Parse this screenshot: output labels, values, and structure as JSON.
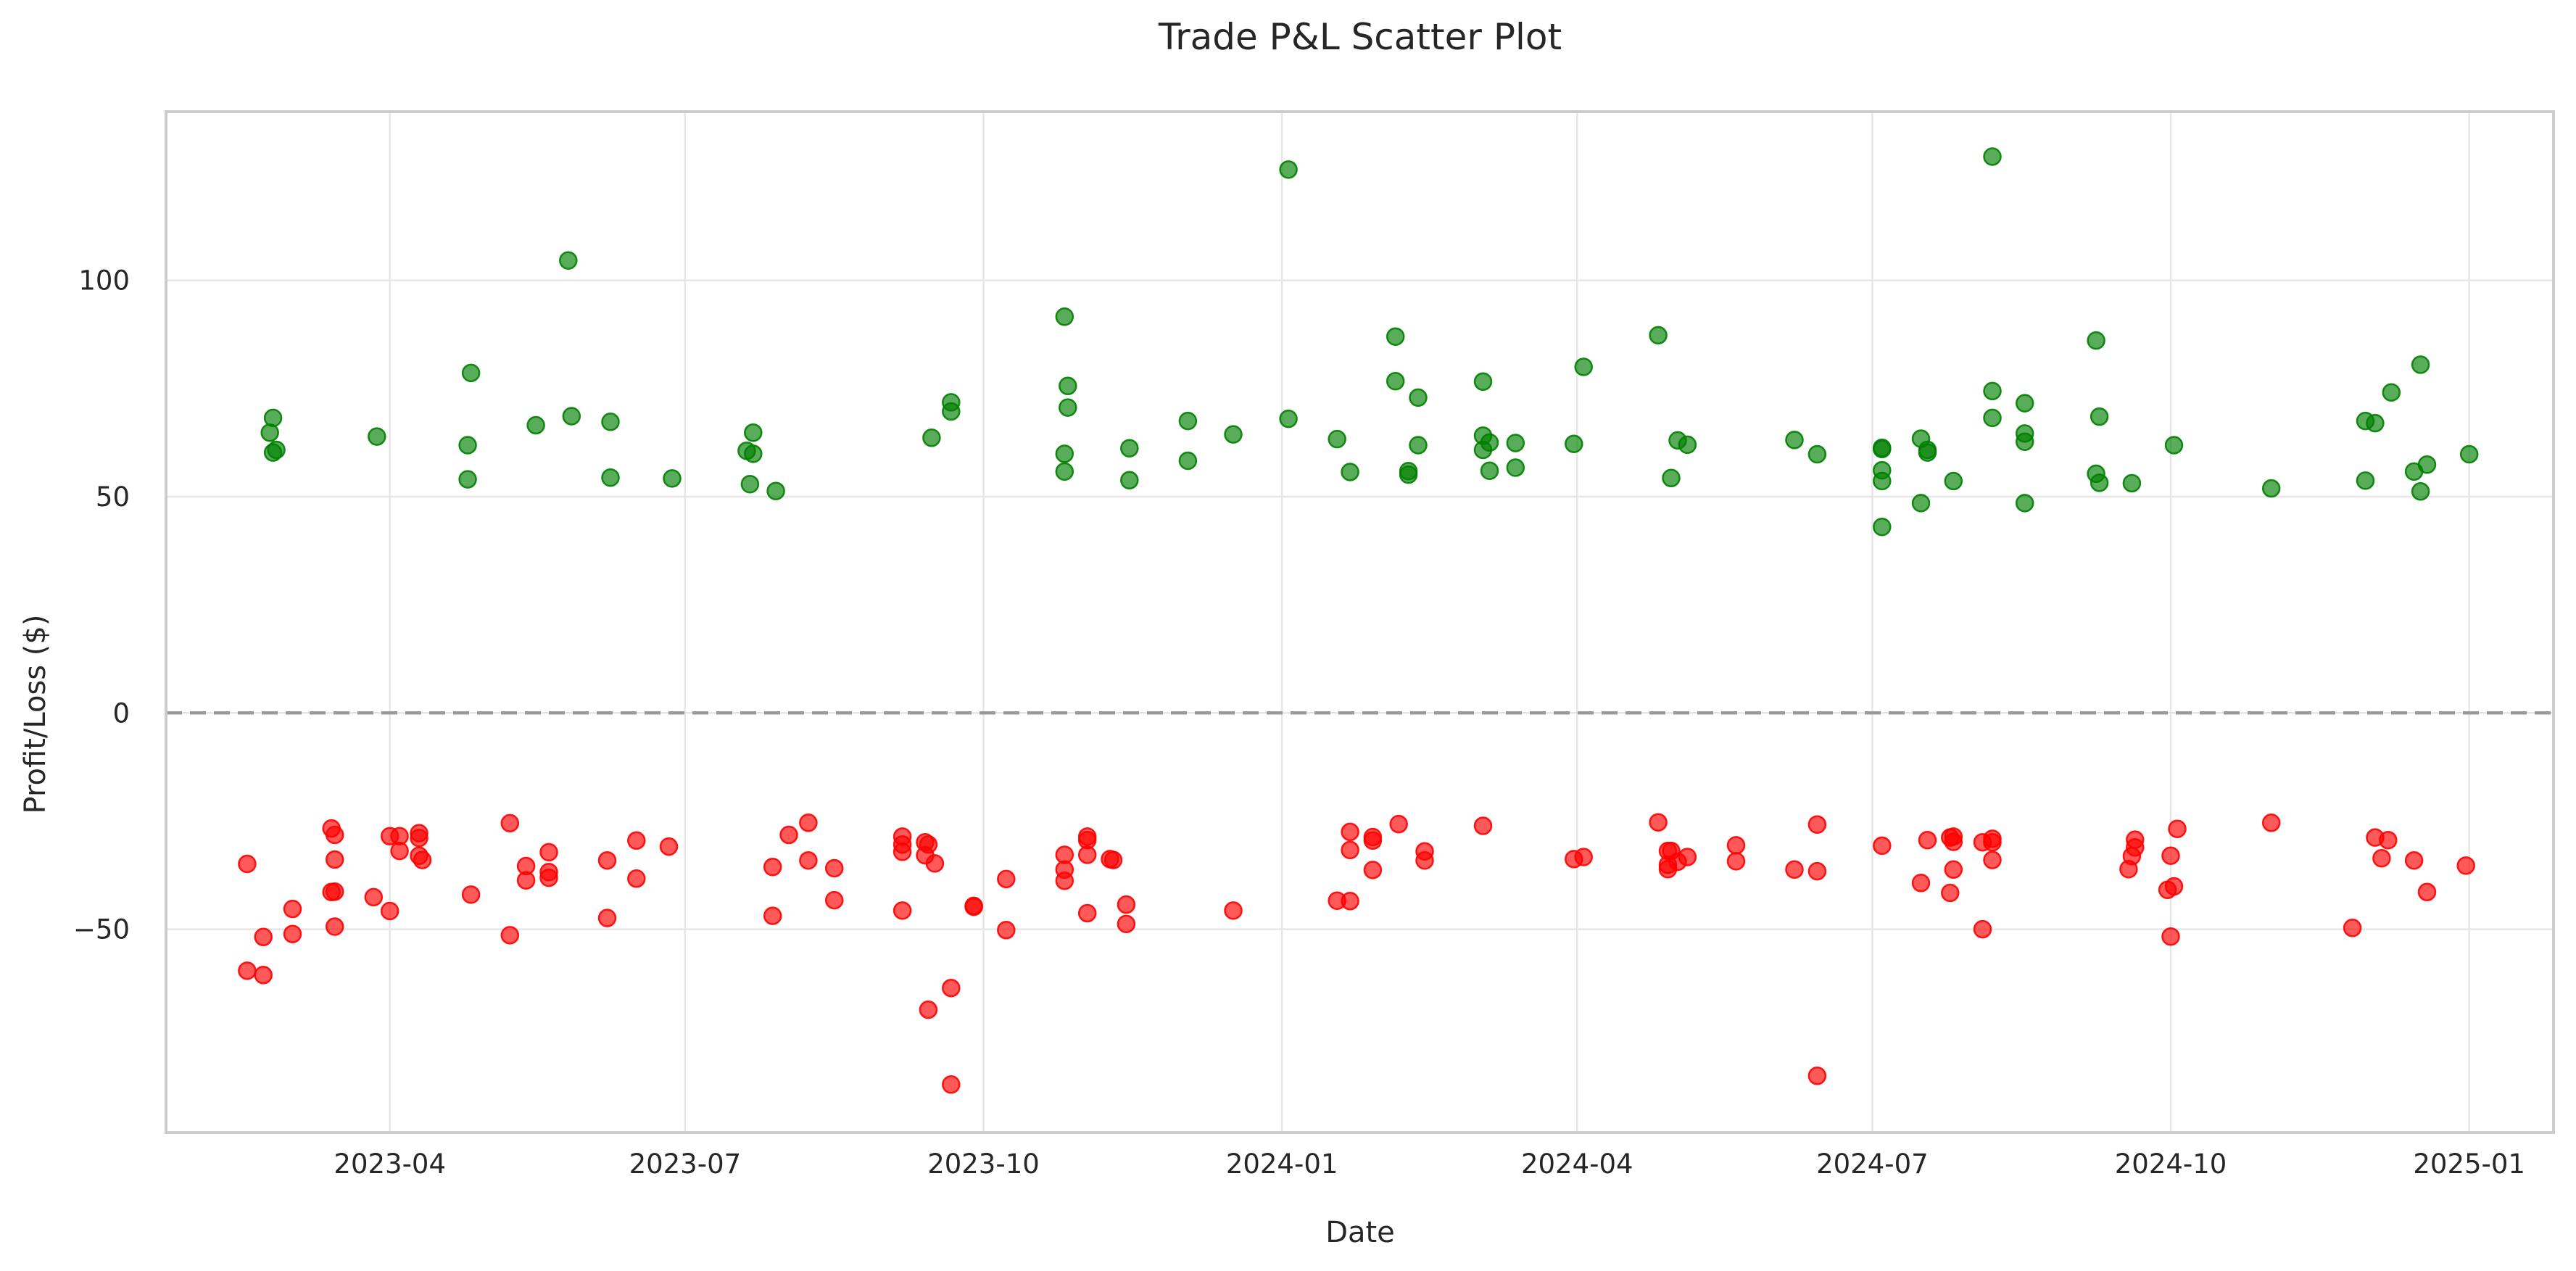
{
  "chart_data": {
    "type": "scatter",
    "title": "Trade P&L Scatter Plot",
    "xlabel": "Date",
    "ylabel": "Profit/Loss ($)",
    "x_type": "date",
    "xlim": [
      "2023-01-22",
      "2025-01-27"
    ],
    "ylim": [
      -97,
      139
    ],
    "x_ticks": [
      "2023-04",
      "2023-07",
      "2023-10",
      "2024-01",
      "2024-04",
      "2024-07",
      "2024-10",
      "2025-01"
    ],
    "y_ticks": [
      -50,
      0,
      50,
      100
    ],
    "y_tick_labels": [
      "−50",
      "0",
      "50",
      "100"
    ],
    "grid": true,
    "reference_line": {
      "y": 0,
      "style": "dashed",
      "color": "#999999"
    },
    "colors": {
      "profit": "#008000",
      "loss": "#ff0000"
    },
    "marker_alpha": 0.65,
    "series": [
      {
        "color": "#008000",
        "points": [
          [
            "2023-02-23",
            64.8
          ],
          [
            "2023-02-24",
            68.2
          ],
          [
            "2023-02-24",
            60.2
          ],
          [
            "2023-02-25",
            60.8
          ],
          [
            "2023-03-28",
            63.9
          ],
          [
            "2023-04-25",
            61.9
          ],
          [
            "2023-04-25",
            54.0
          ],
          [
            "2023-04-26",
            78.6
          ],
          [
            "2023-05-16",
            66.5
          ],
          [
            "2023-05-26",
            104.6
          ],
          [
            "2023-05-27",
            68.6
          ],
          [
            "2023-06-08",
            67.3
          ],
          [
            "2023-06-08",
            54.4
          ],
          [
            "2023-06-27",
            54.2
          ],
          [
            "2023-07-20",
            60.6
          ],
          [
            "2023-07-21",
            52.9
          ],
          [
            "2023-07-22",
            59.9
          ],
          [
            "2023-07-22",
            64.8
          ],
          [
            "2023-07-29",
            51.3
          ],
          [
            "2023-09-15",
            63.6
          ],
          [
            "2023-09-21",
            71.8
          ],
          [
            "2023-09-21",
            69.7
          ],
          [
            "2023-10-26",
            91.6
          ],
          [
            "2023-10-26",
            59.9
          ],
          [
            "2023-10-26",
            55.8
          ],
          [
            "2023-10-27",
            75.6
          ],
          [
            "2023-10-27",
            70.6
          ],
          [
            "2023-11-15",
            61.2
          ],
          [
            "2023-11-15",
            53.8
          ],
          [
            "2023-12-03",
            67.5
          ],
          [
            "2023-12-03",
            58.3
          ],
          [
            "2023-12-17",
            64.4
          ],
          [
            "2024-01-03",
            125.6
          ],
          [
            "2024-01-03",
            68.0
          ],
          [
            "2024-01-18",
            63.3
          ],
          [
            "2024-01-22",
            55.7
          ],
          [
            "2024-02-05",
            87.0
          ],
          [
            "2024-02-05",
            76.7
          ],
          [
            "2024-02-09",
            55.9
          ],
          [
            "2024-02-09",
            55.1
          ],
          [
            "2024-02-12",
            72.9
          ],
          [
            "2024-02-12",
            61.9
          ],
          [
            "2024-03-03",
            76.6
          ],
          [
            "2024-03-03",
            64.1
          ],
          [
            "2024-03-03",
            60.8
          ],
          [
            "2024-03-05",
            62.5
          ],
          [
            "2024-03-05",
            56.0
          ],
          [
            "2024-03-13",
            62.4
          ],
          [
            "2024-03-13",
            56.7
          ],
          [
            "2024-03-31",
            62.2
          ],
          [
            "2024-04-03",
            80.0
          ],
          [
            "2024-04-26",
            87.3
          ],
          [
            "2024-04-30",
            54.3
          ],
          [
            "2024-05-02",
            63.0
          ],
          [
            "2024-05-05",
            62.0
          ],
          [
            "2024-06-07",
            63.1
          ],
          [
            "2024-06-14",
            59.8
          ],
          [
            "2024-07-04",
            61.0
          ],
          [
            "2024-07-04",
            61.3
          ],
          [
            "2024-07-04",
            56.1
          ],
          [
            "2024-07-04",
            53.6
          ],
          [
            "2024-07-04",
            43.0
          ],
          [
            "2024-07-16",
            63.4
          ],
          [
            "2024-07-16",
            48.5
          ],
          [
            "2024-07-18",
            60.2
          ],
          [
            "2024-07-18",
            60.8
          ],
          [
            "2024-07-26",
            53.6
          ],
          [
            "2024-08-07",
            128.6
          ],
          [
            "2024-08-07",
            74.4
          ],
          [
            "2024-08-07",
            68.2
          ],
          [
            "2024-08-17",
            71.6
          ],
          [
            "2024-08-17",
            64.6
          ],
          [
            "2024-08-17",
            62.7
          ],
          [
            "2024-08-17",
            48.5
          ],
          [
            "2024-09-08",
            86.1
          ],
          [
            "2024-09-08",
            55.3
          ],
          [
            "2024-09-09",
            68.5
          ],
          [
            "2024-09-09",
            53.2
          ],
          [
            "2024-09-19",
            53.1
          ],
          [
            "2024-10-02",
            61.9
          ],
          [
            "2024-11-01",
            51.9
          ],
          [
            "2024-11-30",
            67.5
          ],
          [
            "2024-11-30",
            53.7
          ],
          [
            "2024-12-03",
            67.0
          ],
          [
            "2024-12-08",
            74.1
          ],
          [
            "2024-12-15",
            55.8
          ],
          [
            "2024-12-17",
            80.5
          ],
          [
            "2024-12-17",
            51.2
          ],
          [
            "2024-12-19",
            57.4
          ],
          [
            "2025-01-01",
            59.8
          ]
        ]
      },
      {
        "color": "#ff0000",
        "points": [
          [
            "2023-02-16",
            -34.9
          ],
          [
            "2023-02-16",
            -59.6
          ],
          [
            "2023-02-21",
            -51.8
          ],
          [
            "2023-02-21",
            -60.6
          ],
          [
            "2023-03-02",
            -45.3
          ],
          [
            "2023-03-02",
            -51.1
          ],
          [
            "2023-03-14",
            -26.7
          ],
          [
            "2023-03-15",
            -28.2
          ],
          [
            "2023-03-15",
            -33.9
          ],
          [
            "2023-03-14",
            -41.4
          ],
          [
            "2023-03-15",
            -41.3
          ],
          [
            "2023-03-15",
            -49.4
          ],
          [
            "2023-03-27",
            -42.6
          ],
          [
            "2023-04-01",
            -28.5
          ],
          [
            "2023-04-04",
            -28.5
          ],
          [
            "2023-04-04",
            -31.9
          ],
          [
            "2023-04-01",
            -45.8
          ],
          [
            "2023-04-10",
            -27.8
          ],
          [
            "2023-04-10",
            -28.9
          ],
          [
            "2023-04-10",
            -33.0
          ],
          [
            "2023-04-11",
            -34.0
          ],
          [
            "2023-04-26",
            -42.0
          ],
          [
            "2023-05-08",
            -25.5
          ],
          [
            "2023-05-08",
            -51.4
          ],
          [
            "2023-05-13",
            -35.4
          ],
          [
            "2023-05-13",
            -38.7
          ],
          [
            "2023-05-20",
            -32.2
          ],
          [
            "2023-05-20",
            -36.8
          ],
          [
            "2023-05-20",
            -38.1
          ],
          [
            "2023-06-07",
            -34.1
          ],
          [
            "2023-06-07",
            -47.4
          ],
          [
            "2023-06-16",
            -29.5
          ],
          [
            "2023-06-16",
            -38.3
          ],
          [
            "2023-06-26",
            -30.9
          ],
          [
            "2023-07-28",
            -35.6
          ],
          [
            "2023-07-28",
            -46.9
          ],
          [
            "2023-08-02",
            -28.2
          ],
          [
            "2023-08-08",
            -25.4
          ],
          [
            "2023-08-08",
            -34.1
          ],
          [
            "2023-08-16",
            -35.9
          ],
          [
            "2023-08-16",
            -43.3
          ],
          [
            "2023-09-06",
            -30.4
          ],
          [
            "2023-09-06",
            -28.6
          ],
          [
            "2023-09-06",
            -32.1
          ],
          [
            "2023-09-06",
            -45.7
          ],
          [
            "2023-09-13",
            -29.9
          ],
          [
            "2023-09-13",
            -32.9
          ],
          [
            "2023-09-14",
            -30.4
          ],
          [
            "2023-09-14",
            -68.6
          ],
          [
            "2023-09-16",
            -34.8
          ],
          [
            "2023-09-21",
            -63.6
          ],
          [
            "2023-09-21",
            -85.9
          ],
          [
            "2023-09-28",
            -44.6
          ],
          [
            "2023-09-28",
            -44.8
          ],
          [
            "2023-10-08",
            -38.4
          ],
          [
            "2023-10-08",
            -50.2
          ],
          [
            "2023-10-26",
            -32.8
          ],
          [
            "2023-10-26",
            -38.8
          ],
          [
            "2023-10-26",
            -36.2
          ],
          [
            "2023-11-02",
            -29.4
          ],
          [
            "2023-11-02",
            -28.6
          ],
          [
            "2023-11-02",
            -32.8
          ],
          [
            "2023-11-02",
            -46.3
          ],
          [
            "2023-11-09",
            -33.8
          ],
          [
            "2023-11-10",
            -34.0
          ],
          [
            "2023-11-14",
            -44.3
          ],
          [
            "2023-11-14",
            -48.8
          ],
          [
            "2023-12-17",
            -45.7
          ],
          [
            "2024-01-18",
            -43.4
          ],
          [
            "2024-01-22",
            -27.5
          ],
          [
            "2024-01-22",
            -31.7
          ],
          [
            "2024-01-22",
            -43.5
          ],
          [
            "2024-01-29",
            -28.7
          ],
          [
            "2024-01-29",
            -29.5
          ],
          [
            "2024-01-29",
            -36.3
          ],
          [
            "2024-02-06",
            -25.7
          ],
          [
            "2024-02-14",
            -32.0
          ],
          [
            "2024-02-14",
            -34.1
          ],
          [
            "2024-03-03",
            -26.1
          ],
          [
            "2024-03-31",
            -33.8
          ],
          [
            "2024-04-03",
            -33.3
          ],
          [
            "2024-04-26",
            -25.3
          ],
          [
            "2024-04-29",
            -31.9
          ],
          [
            "2024-04-29",
            -35.1
          ],
          [
            "2024-04-29",
            -36.1
          ],
          [
            "2024-04-30",
            -31.9
          ],
          [
            "2024-05-02",
            -34.4
          ],
          [
            "2024-05-05",
            -33.3
          ],
          [
            "2024-05-20",
            -30.6
          ],
          [
            "2024-05-20",
            -34.3
          ],
          [
            "2024-06-07",
            -36.2
          ],
          [
            "2024-06-14",
            -25.8
          ],
          [
            "2024-06-14",
            -36.6
          ],
          [
            "2024-06-14",
            -83.9
          ],
          [
            "2024-07-04",
            -30.7
          ],
          [
            "2024-07-16",
            -39.3
          ],
          [
            "2024-07-18",
            -29.4
          ],
          [
            "2024-07-25",
            -28.8
          ],
          [
            "2024-07-26",
            -29.8
          ],
          [
            "2024-07-26",
            -28.6
          ],
          [
            "2024-07-25",
            -41.6
          ],
          [
            "2024-07-26",
            -36.2
          ],
          [
            "2024-08-04",
            -50.0
          ],
          [
            "2024-08-04",
            -29.9
          ],
          [
            "2024-08-07",
            -29.1
          ],
          [
            "2024-08-07",
            -29.9
          ],
          [
            "2024-08-07",
            -34.0
          ],
          [
            "2024-09-18",
            -36.1
          ],
          [
            "2024-09-19",
            -33.1
          ],
          [
            "2024-09-20",
            -31.1
          ],
          [
            "2024-09-20",
            -29.3
          ],
          [
            "2024-09-30",
            -40.9
          ],
          [
            "2024-10-01",
            -33.0
          ],
          [
            "2024-10-01",
            -51.7
          ],
          [
            "2024-10-02",
            -40.1
          ],
          [
            "2024-10-03",
            -26.8
          ],
          [
            "2024-11-01",
            -25.4
          ],
          [
            "2024-11-26",
            -49.7
          ],
          [
            "2024-12-05",
            -33.6
          ],
          [
            "2024-12-03",
            -28.8
          ],
          [
            "2024-12-07",
            -29.4
          ],
          [
            "2024-12-15",
            -34.1
          ],
          [
            "2024-12-19",
            -41.4
          ],
          [
            "2024-12-31",
            -35.3
          ]
        ]
      }
    ]
  }
}
